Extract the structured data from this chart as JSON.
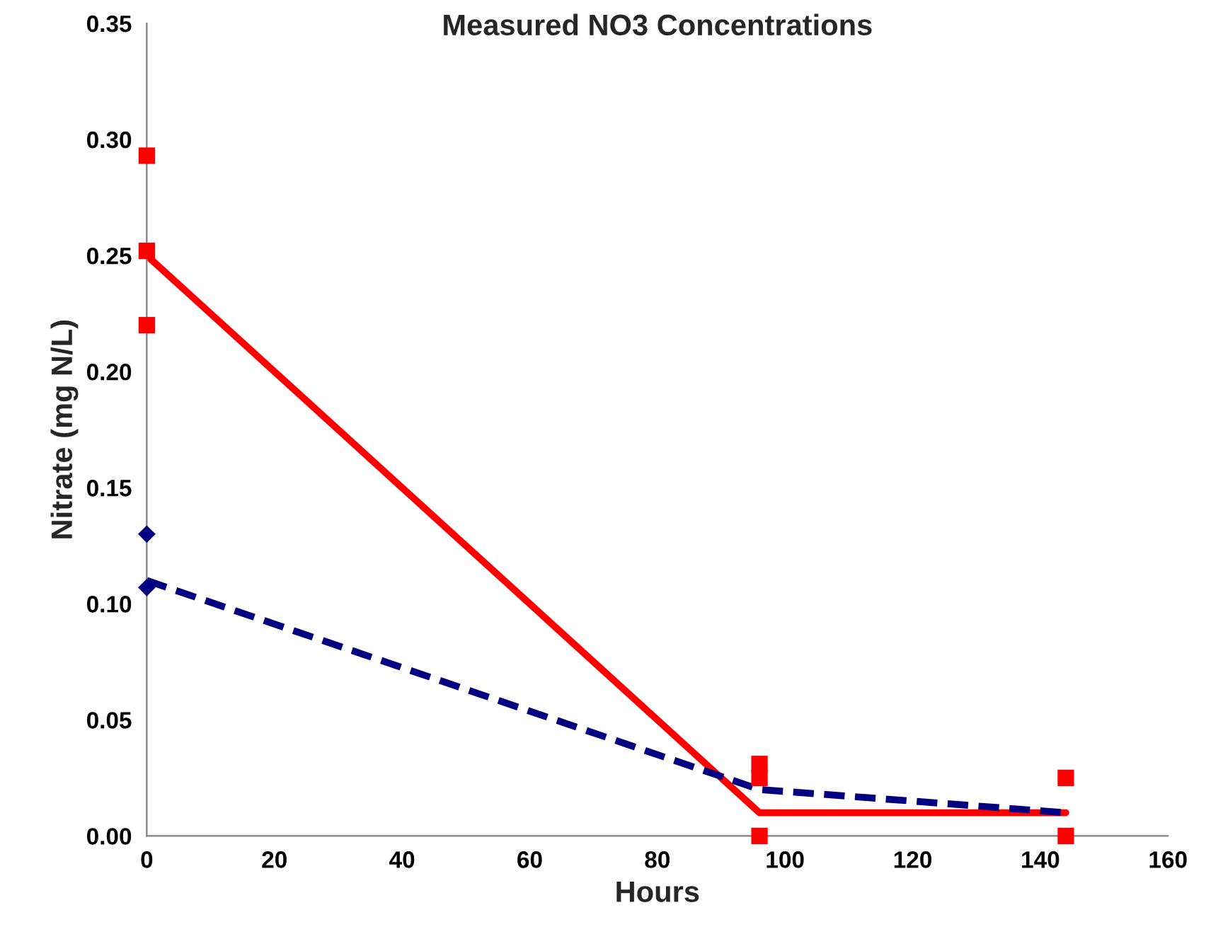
{
  "chart_data": {
    "type": "scatter",
    "title": "Measured NO3 Concentrations",
    "xlabel": "Hours",
    "ylabel": "Nitrate (mg N/L)",
    "series": [
      {
        "color": "#ff0000",
        "marker": "square",
        "x": [
          0,
          0,
          0,
          96,
          96,
          96,
          144,
          144
        ],
        "values": [
          0.293,
          0.252,
          0.22,
          0.031,
          0.025,
          0.0,
          0.025,
          0.0
        ]
      },
      {
        "color": "#000080",
        "marker": "diamond",
        "x": [
          0,
          0
        ],
        "values": [
          0.13,
          0.107
        ]
      },
      {
        "type": "line",
        "color": "#ff0000",
        "marker": "none",
        "line_style": "solid",
        "x": [
          0,
          96,
          144
        ],
        "values": [
          0.25,
          0.01,
          0.01
        ]
      },
      {
        "type": "line",
        "color": "#000080",
        "marker": "none",
        "line_style": "dashed",
        "x": [
          0,
          96,
          144
        ],
        "values": [
          0.11,
          0.02,
          0.01
        ]
      }
    ],
    "xlim": [
      0,
      160
    ],
    "xticks": [
      0,
      20,
      40,
      60,
      80,
      100,
      120,
      140,
      160
    ],
    "ylim": [
      0,
      0.35
    ],
    "yticks": [
      {
        "value": 0,
        "label": "0.00"
      },
      {
        "value": 0.05,
        "label": "0.05"
      },
      {
        "value": 0.1,
        "label": "0.10"
      },
      {
        "value": 0.15,
        "label": "0.15"
      },
      {
        "value": 0.2,
        "label": "0.20"
      },
      {
        "value": 0.25,
        "label": "0.25"
      },
      {
        "value": 0.3,
        "label": "0.30"
      },
      {
        "value": 0.35,
        "label": "0.35"
      }
    ],
    "grid": false,
    "legend": false
  }
}
